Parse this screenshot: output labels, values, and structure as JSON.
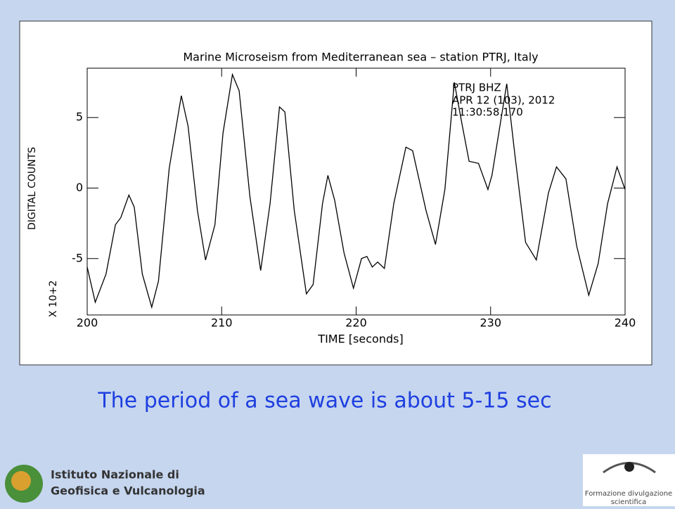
{
  "chart_data": {
    "type": "line",
    "title": "Marine Microseism from Mediterranean sea – station PTRJ, Italy",
    "annotations": [
      "PTRJ   BHZ",
      "APR 12 (103), 2012",
      "11:30:58.170"
    ],
    "x_label": "TIME  [seconds]",
    "y_label": "DIGITAL COUNTS",
    "y_scale_label": "X 10+2",
    "xlim": [
      200,
      240
    ],
    "xticks": [
      200,
      210,
      220,
      230,
      240
    ],
    "ylim": [
      -9,
      8.5
    ],
    "yticks": [
      -5,
      0,
      5
    ],
    "series": [
      {
        "color": "#000000",
        "x": [
          200,
          200.6,
          201.4,
          202.1,
          202.5,
          203.1,
          203.5,
          204.1,
          204.8,
          205.3,
          206.1,
          207.0,
          207.5,
          208.2,
          208.8,
          209.5,
          210.1,
          210.8,
          211.3,
          212.1,
          212.9,
          213.6,
          214.3,
          214.7,
          215.4,
          216.3,
          216.8,
          217.5,
          217.9,
          218.4,
          219.1,
          219.8,
          220.4,
          220.8,
          221.2,
          221.6,
          222.1,
          222.8,
          223.7,
          224.2,
          225.2,
          225.9,
          226.6,
          227.3,
          227.9,
          228.4,
          229.1,
          229.8,
          230.1,
          231.2,
          231.8,
          232.6,
          233.4,
          234.3,
          234.9,
          235.6,
          236.4,
          237.3,
          238.0,
          238.7,
          239.4,
          240.0
        ],
        "values": [
          -5.6,
          -8.1,
          -6.1,
          -2.6,
          -2.1,
          -0.5,
          -1.35,
          -6.1,
          -8.45,
          -6.6,
          1.4,
          6.55,
          4.4,
          -1.6,
          -5.1,
          -2.6,
          3.9,
          8.05,
          6.9,
          -0.6,
          -5.85,
          -1.1,
          5.75,
          5.4,
          -1.6,
          -7.5,
          -6.85,
          -1.1,
          0.9,
          -0.85,
          -4.6,
          -7.1,
          -5,
          -4.85,
          -5.6,
          -5.25,
          -5.7,
          -1.1,
          2.9,
          2.65,
          -1.6,
          -4.0,
          -0.1,
          7.5,
          4.4,
          1.9,
          1.75,
          -0.1,
          0.9,
          7.4,
          2.4,
          -3.85,
          -5.1,
          -0.35,
          1.5,
          0.65,
          -4.1,
          -7.6,
          -5.35,
          -1.1,
          1.5,
          -0.1
        ]
      }
    ]
  },
  "caption": "The period of a sea wave is about  5-15 sec",
  "logo_left": [
    "Istituto Nazionale di",
    "Geofisica e Vulcanologia"
  ],
  "logo_right": [
    "Formazione divulgazione",
    "scientifica"
  ]
}
